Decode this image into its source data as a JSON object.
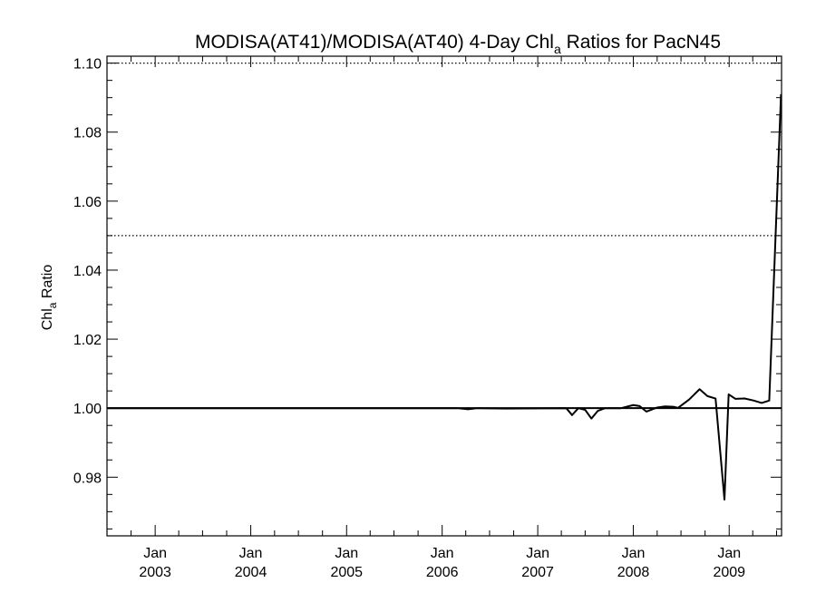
{
  "chart_data": {
    "type": "line",
    "title": {
      "before_subscript": "MODISA(AT41)/MODISA(AT40) 4-Day Chl",
      "subscript": "a",
      "after_subscript": " Ratios for PacN45"
    },
    "xlabel": "",
    "ylabel": {
      "main": "Chl",
      "subscript": "a",
      "after": " Ratio"
    },
    "xlim": [
      "2002-07-01",
      "2009-07-20"
    ],
    "ylim": [
      0.963,
      1.102
    ],
    "y_ticks": [
      "0.98",
      "1.00",
      "1.02",
      "1.04",
      "1.06",
      "1.08",
      "1.10"
    ],
    "x_ticks": [
      {
        "date": "2003-01-01",
        "line1": "Jan",
        "line2": "2003"
      },
      {
        "date": "2004-01-01",
        "line1": "Jan",
        "line2": "2004"
      },
      {
        "date": "2005-01-01",
        "line1": "Jan",
        "line2": "2005"
      },
      {
        "date": "2006-01-01",
        "line1": "Jan",
        "line2": "2006"
      },
      {
        "date": "2007-01-01",
        "line1": "Jan",
        "line2": "2007"
      },
      {
        "date": "2008-01-01",
        "line1": "Jan",
        "line2": "2008"
      },
      {
        "date": "2009-01-01",
        "line1": "Jan",
        "line2": "2009"
      }
    ],
    "reference_lines": [
      {
        "y": 1.0,
        "style": "solid"
      },
      {
        "y": 1.05,
        "style": "dotted"
      },
      {
        "y": 1.1,
        "style": "dotted"
      }
    ],
    "series": [
      {
        "color": "#000000",
        "points": [
          {
            "x": "2002-07-04",
            "y": 1.0
          },
          {
            "x": "2006-02-28",
            "y": 1.0
          },
          {
            "x": "2006-04-10",
            "y": 0.9997
          },
          {
            "x": "2006-05-15",
            "y": 1.0
          },
          {
            "x": "2006-09-01",
            "y": 0.9999
          },
          {
            "x": "2007-04-20",
            "y": 1.0
          },
          {
            "x": "2007-05-12",
            "y": 0.998
          },
          {
            "x": "2007-06-05",
            "y": 1.0
          },
          {
            "x": "2007-07-01",
            "y": 0.9995
          },
          {
            "x": "2007-07-25",
            "y": 0.997
          },
          {
            "x": "2007-08-18",
            "y": 0.9992
          },
          {
            "x": "2007-09-15",
            "y": 1.0
          },
          {
            "x": "2007-11-15",
            "y": 1.0
          },
          {
            "x": "2008-01-01",
            "y": 1.0009
          },
          {
            "x": "2008-01-25",
            "y": 1.0006
          },
          {
            "x": "2008-02-20",
            "y": 0.999
          },
          {
            "x": "2008-04-01",
            "y": 1.0002
          },
          {
            "x": "2008-05-01",
            "y": 1.0005
          },
          {
            "x": "2008-06-01",
            "y": 1.0004
          },
          {
            "x": "2008-06-20",
            "y": 1.0001
          },
          {
            "x": "2008-08-01",
            "y": 1.0025
          },
          {
            "x": "2008-09-10",
            "y": 1.0055
          },
          {
            "x": "2008-10-10",
            "y": 1.0035
          },
          {
            "x": "2008-11-10",
            "y": 1.0028
          },
          {
            "x": "2008-12-14",
            "y": 0.9735
          },
          {
            "x": "2008-12-30",
            "y": 1.004
          },
          {
            "x": "2009-01-25",
            "y": 1.0027
          },
          {
            "x": "2009-03-01",
            "y": 1.0028
          },
          {
            "x": "2009-04-05",
            "y": 1.0022
          },
          {
            "x": "2009-05-05",
            "y": 1.0015
          },
          {
            "x": "2009-06-03",
            "y": 1.0022
          },
          {
            "x": "2009-07-18",
            "y": 1.091
          }
        ]
      }
    ]
  }
}
